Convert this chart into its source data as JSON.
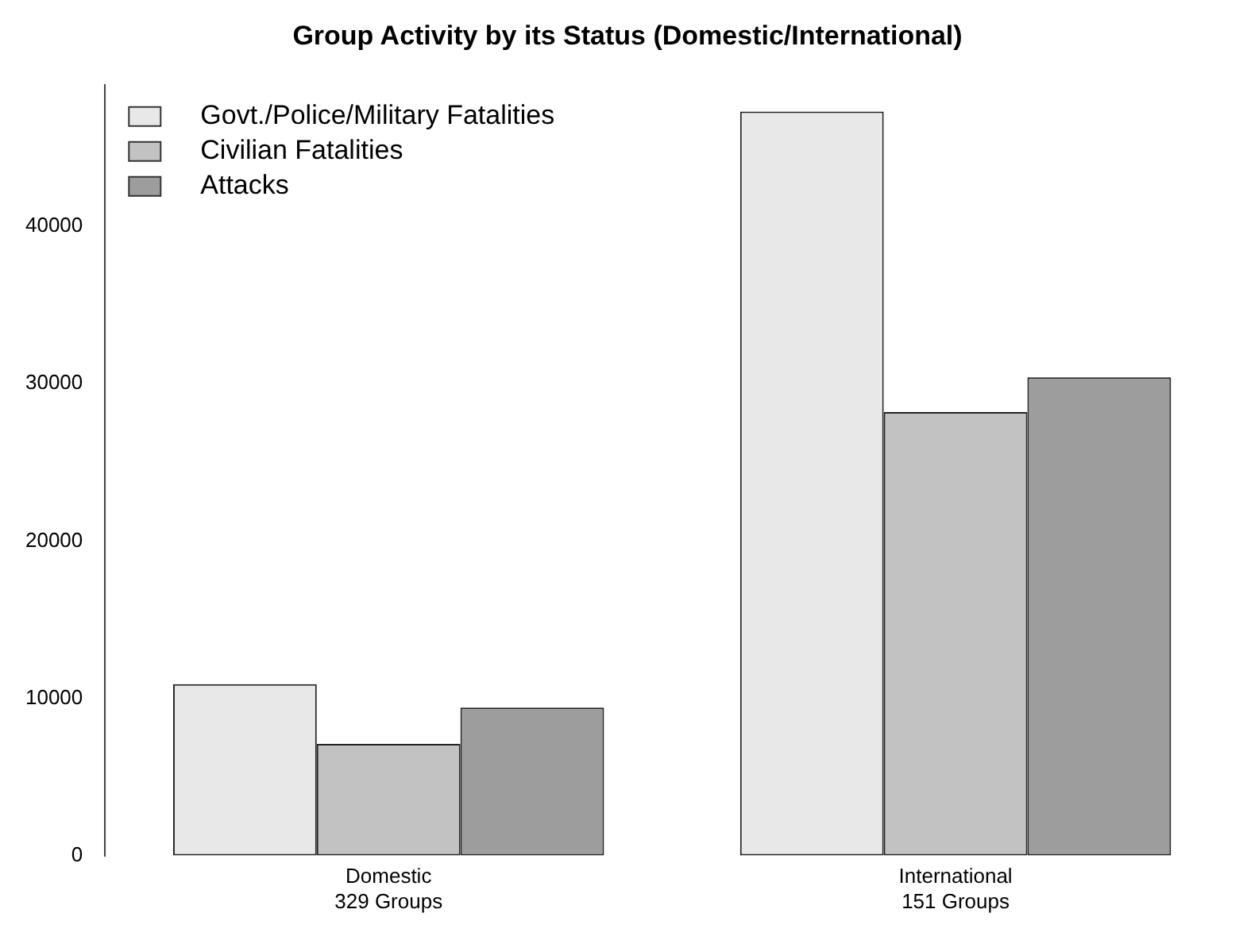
{
  "chart_data": {
    "type": "bar",
    "title": "Group Activity by its Status (Domestic/International)",
    "categories": [
      "Domestic\n329 Groups",
      "International\n151 Groups"
    ],
    "series": [
      {
        "name": "Govt./Police/Military Fatalities",
        "color": "#e8e8e8",
        "values": [
          10900,
          47300
        ]
      },
      {
        "name": "Civilian Fatalities",
        "color": "#c2c2c2",
        "values": [
          7100,
          28200
        ]
      },
      {
        "name": "Attacks",
        "color": "#9d9d9d",
        "values": [
          9400,
          30400
        ]
      }
    ],
    "ylim": [
      0,
      49000
    ],
    "yticks": [
      0,
      10000,
      20000,
      30000,
      40000
    ],
    "grid": false,
    "legend": "top left"
  }
}
